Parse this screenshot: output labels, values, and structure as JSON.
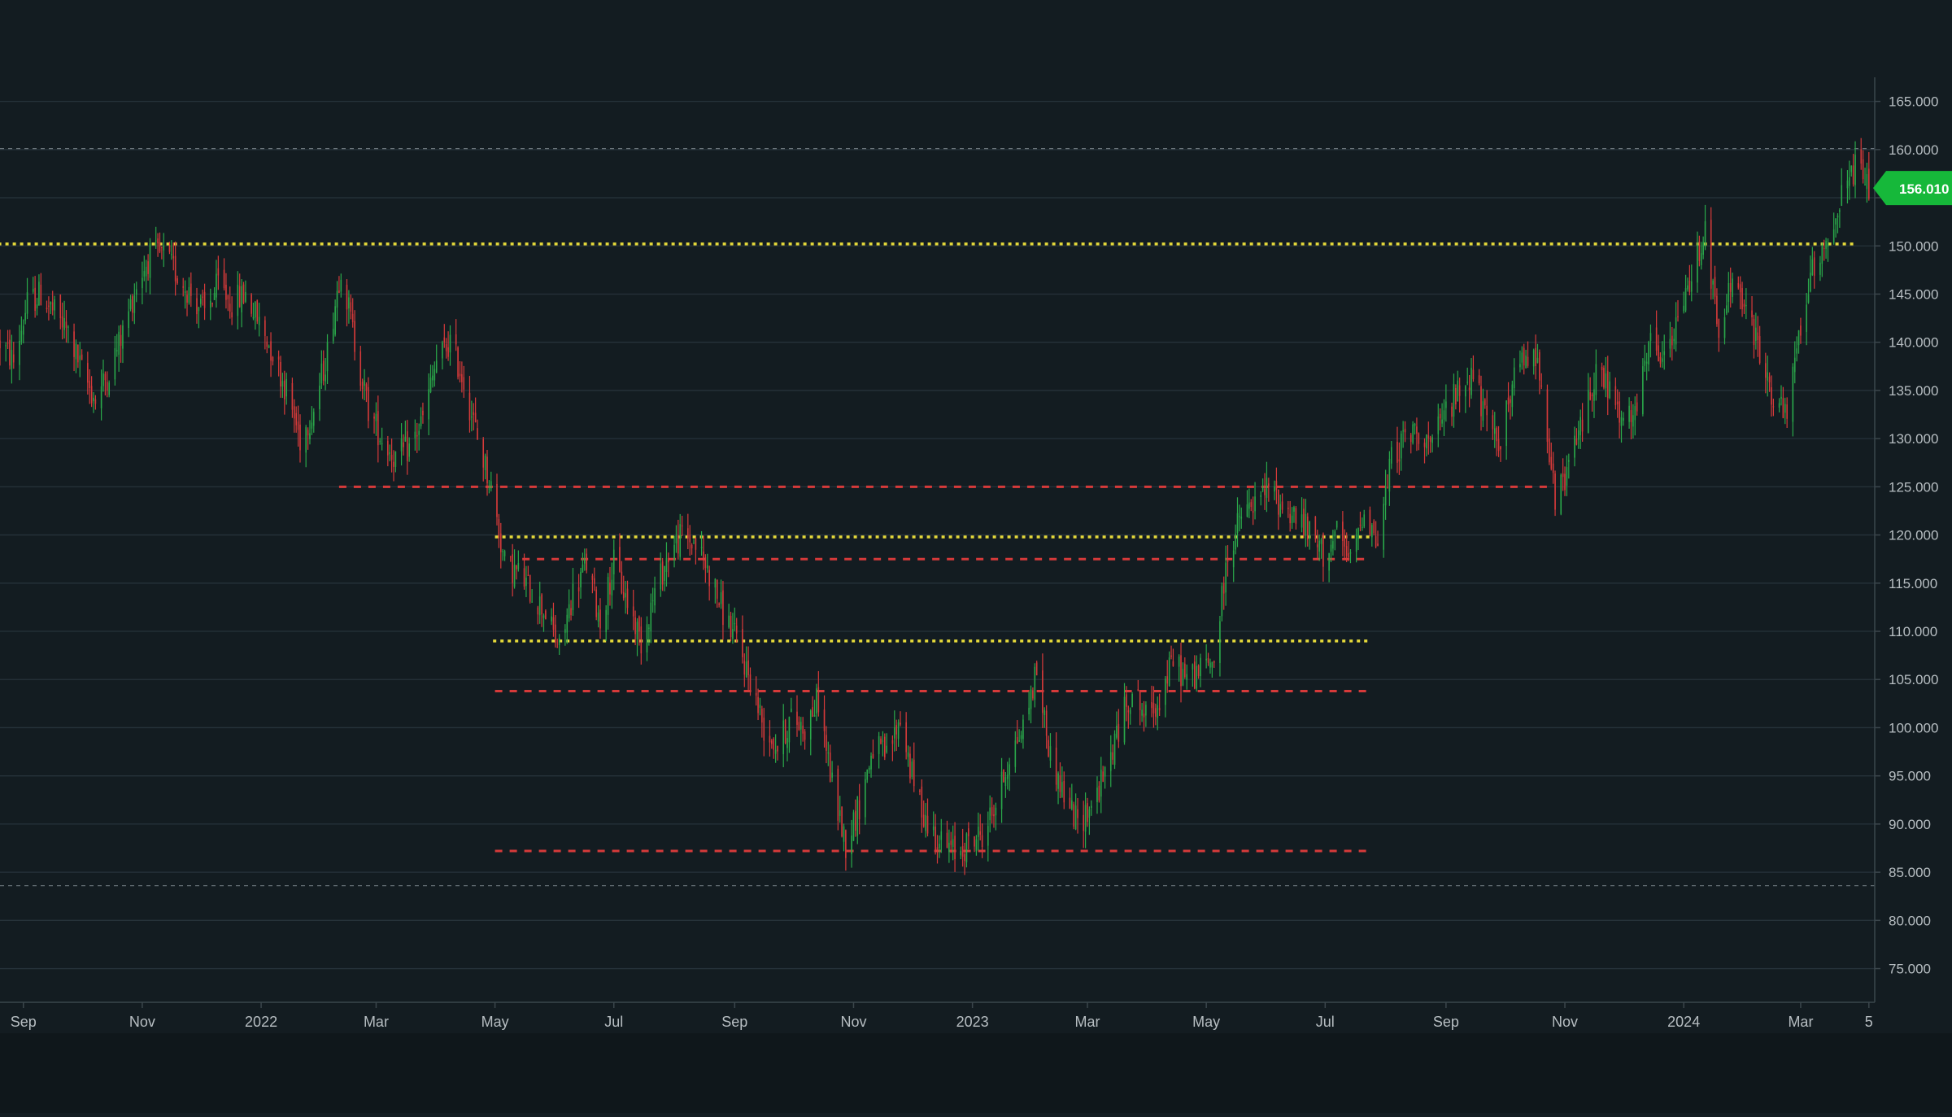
{
  "chart_data": {
    "type": "candlestick",
    "title": "",
    "xlabel": "",
    "ylabel": "",
    "ylim": [
      71.5,
      167.5
    ],
    "y_ticks": [
      75,
      80,
      85,
      90,
      95,
      100,
      105,
      110,
      115,
      120,
      125,
      130,
      135,
      140,
      145,
      150,
      155,
      160,
      165
    ],
    "y_tick_labels": [
      "75.000",
      "80.000",
      "85.000",
      "90.000",
      "95.000",
      "100.000",
      "105.000",
      "110.000",
      "115.000",
      "120.000",
      "125.000",
      "130.000",
      "135.000",
      "140.000",
      "145.000",
      "150.000",
      "155.000",
      "160.000",
      "165.000"
    ],
    "xlim": [
      "2021-08-20",
      "2024-04-08"
    ],
    "x_ticks": [
      {
        "date": "2021-09-01",
        "label": "Sep"
      },
      {
        "date": "2021-11-01",
        "label": "Nov"
      },
      {
        "date": "2022-01-01",
        "label": "2022"
      },
      {
        "date": "2022-03-01",
        "label": "Mar"
      },
      {
        "date": "2022-05-01",
        "label": "May"
      },
      {
        "date": "2022-07-01",
        "label": "Jul"
      },
      {
        "date": "2022-09-01",
        "label": "Sep"
      },
      {
        "date": "2022-11-01",
        "label": "Nov"
      },
      {
        "date": "2023-01-01",
        "label": "2023"
      },
      {
        "date": "2023-03-01",
        "label": "Mar"
      },
      {
        "date": "2023-05-01",
        "label": "May"
      },
      {
        "date": "2023-07-01",
        "label": "Jul"
      },
      {
        "date": "2023-09-01",
        "label": "Sep"
      },
      {
        "date": "2023-11-01",
        "label": "Nov"
      },
      {
        "date": "2024-01-01",
        "label": "2024"
      },
      {
        "date": "2024-03-01",
        "label": "Mar"
      },
      {
        "date": "2024-04-05",
        "label": "5"
      }
    ],
    "grid": true,
    "price_path": [
      [
        "2021-08-20",
        140
      ],
      [
        "2021-08-27",
        138
      ],
      [
        "2021-09-03",
        144
      ],
      [
        "2021-09-10",
        145
      ],
      [
        "2021-09-17",
        143
      ],
      [
        "2021-09-24",
        141
      ],
      [
        "2021-10-01",
        137
      ],
      [
        "2021-10-08",
        134
      ],
      [
        "2021-10-15",
        137
      ],
      [
        "2021-10-22",
        141
      ],
      [
        "2021-10-29",
        146
      ],
      [
        "2021-11-05",
        149
      ],
      [
        "2021-11-12",
        149
      ],
      [
        "2021-11-19",
        147
      ],
      [
        "2021-11-26",
        145
      ],
      [
        "2021-12-03",
        143
      ],
      [
        "2021-12-10",
        146
      ],
      [
        "2021-12-17",
        144
      ],
      [
        "2021-12-24",
        145
      ],
      [
        "2021-12-31",
        142
      ],
      [
        "2022-01-07",
        139
      ],
      [
        "2022-01-14",
        135
      ],
      [
        "2022-01-21",
        130
      ],
      [
        "2022-01-28",
        133
      ],
      [
        "2022-02-04",
        139
      ],
      [
        "2022-02-11",
        148
      ],
      [
        "2022-02-18",
        140
      ],
      [
        "2022-02-25",
        133
      ],
      [
        "2022-03-04",
        130
      ],
      [
        "2022-03-11",
        128
      ],
      [
        "2022-03-18",
        129
      ],
      [
        "2022-03-25",
        132
      ],
      [
        "2022-04-01",
        138
      ],
      [
        "2022-04-08",
        140
      ],
      [
        "2022-04-15",
        136
      ],
      [
        "2022-04-22",
        130
      ],
      [
        "2022-04-29",
        125
      ],
      [
        "2022-05-06",
        117
      ],
      [
        "2022-05-13",
        116
      ],
      [
        "2022-05-20",
        114
      ],
      [
        "2022-05-27",
        112
      ],
      [
        "2022-06-03",
        108
      ],
      [
        "2022-06-10",
        114
      ],
      [
        "2022-06-17",
        117
      ],
      [
        "2022-06-24",
        111
      ],
      [
        "2022-07-01",
        117
      ],
      [
        "2022-07-08",
        113
      ],
      [
        "2022-07-15",
        109
      ],
      [
        "2022-07-22",
        114
      ],
      [
        "2022-07-29",
        118
      ],
      [
        "2022-08-05",
        120
      ],
      [
        "2022-08-12",
        119
      ],
      [
        "2022-08-19",
        116
      ],
      [
        "2022-08-26",
        112
      ],
      [
        "2022-09-02",
        109
      ],
      [
        "2022-09-09",
        105
      ],
      [
        "2022-09-16",
        100
      ],
      [
        "2022-09-23",
        98
      ],
      [
        "2022-09-30",
        101
      ],
      [
        "2022-10-07",
        100
      ],
      [
        "2022-10-14",
        103
      ],
      [
        "2022-10-21",
        94
      ],
      [
        "2022-10-28",
        88
      ],
      [
        "2022-11-04",
        92
      ],
      [
        "2022-11-11",
        98
      ],
      [
        "2022-11-18",
        97
      ],
      [
        "2022-11-25",
        101
      ],
      [
        "2022-12-02",
        94
      ],
      [
        "2022-12-09",
        90
      ],
      [
        "2022-12-16",
        88
      ],
      [
        "2022-12-23",
        87
      ],
      [
        "2022-12-30",
        88
      ],
      [
        "2023-01-06",
        89
      ],
      [
        "2023-01-13",
        92
      ],
      [
        "2023-01-20",
        97
      ],
      [
        "2023-01-27",
        100
      ],
      [
        "2023-02-03",
        106
      ],
      [
        "2023-02-10",
        97
      ],
      [
        "2023-02-17",
        93
      ],
      [
        "2023-02-24",
        90
      ],
      [
        "2023-03-03",
        92
      ],
      [
        "2023-03-10",
        95
      ],
      [
        "2023-03-17",
        100
      ],
      [
        "2023-03-24",
        104
      ],
      [
        "2023-03-31",
        101
      ],
      [
        "2023-04-07",
        103
      ],
      [
        "2023-04-14",
        107
      ],
      [
        "2023-04-21",
        105
      ],
      [
        "2023-04-28",
        106
      ],
      [
        "2023-05-05",
        107
      ],
      [
        "2023-05-12",
        118
      ],
      [
        "2023-05-19",
        122
      ],
      [
        "2023-05-26",
        123
      ],
      [
        "2023-06-02",
        125
      ],
      [
        "2023-06-09",
        123
      ],
      [
        "2023-06-16",
        122
      ],
      [
        "2023-06-23",
        120
      ],
      [
        "2023-06-30",
        118
      ],
      [
        "2023-07-07",
        120
      ],
      [
        "2023-07-14",
        117
      ],
      [
        "2023-07-21",
        123
      ],
      [
        "2023-07-28",
        119
      ],
      [
        "2023-08-04",
        128
      ],
      [
        "2023-08-11",
        130
      ],
      [
        "2023-08-18",
        131
      ],
      [
        "2023-08-25",
        129
      ],
      [
        "2023-09-01",
        133
      ],
      [
        "2023-09-08",
        135
      ],
      [
        "2023-09-15",
        137
      ],
      [
        "2023-09-22",
        131
      ],
      [
        "2023-09-29",
        130
      ],
      [
        "2023-10-06",
        136
      ],
      [
        "2023-10-13",
        139
      ],
      [
        "2023-10-20",
        137
      ],
      [
        "2023-10-27",
        123
      ],
      [
        "2023-11-03",
        127
      ],
      [
        "2023-11-10",
        132
      ],
      [
        "2023-11-17",
        137
      ],
      [
        "2023-11-24",
        135
      ],
      [
        "2023-12-01",
        131
      ],
      [
        "2023-12-08",
        133
      ],
      [
        "2023-12-15",
        140
      ],
      [
        "2023-12-22",
        138
      ],
      [
        "2023-12-29",
        142
      ],
      [
        "2024-01-05",
        147
      ],
      [
        "2024-01-12",
        152
      ],
      [
        "2024-01-19",
        140
      ],
      [
        "2024-01-26",
        147
      ],
      [
        "2024-02-02",
        143
      ],
      [
        "2024-02-09",
        139
      ],
      [
        "2024-02-16",
        134
      ],
      [
        "2024-02-23",
        132
      ],
      [
        "2024-03-01",
        142
      ],
      [
        "2024-03-08",
        148
      ],
      [
        "2024-03-15",
        151
      ],
      [
        "2024-03-22",
        155
      ],
      [
        "2024-03-29",
        158
      ],
      [
        "2024-04-05",
        156
      ]
    ],
    "levels": [
      {
        "price": 150.2,
        "style": "dotted",
        "color": "#e5d93a",
        "from": "2021-08-19",
        "to": "2024-03-28"
      },
      {
        "price": 125.0,
        "style": "dashed",
        "color": "#d63a3a",
        "from": "2022-02-10",
        "to": "2023-10-25"
      },
      {
        "price": 119.8,
        "style": "dotted",
        "color": "#e5d93a",
        "from": "2022-05-01",
        "to": "2023-07-24"
      },
      {
        "price": 117.5,
        "style": "dashed",
        "color": "#d63a3a",
        "from": "2022-05-15",
        "to": "2023-07-24"
      },
      {
        "price": 109.0,
        "style": "dotted",
        "color": "#e5d93a",
        "from": "2022-04-30",
        "to": "2023-07-24"
      },
      {
        "price": 103.8,
        "style": "dashed",
        "color": "#d63a3a",
        "from": "2022-05-01",
        "to": "2023-07-24"
      },
      {
        "price": 87.2,
        "style": "dashed",
        "color": "#d63a3a",
        "from": "2022-05-01",
        "to": "2023-07-24"
      },
      {
        "price": 160.1,
        "style": "ref",
        "color": "#6b757b",
        "from": "2021-08-20",
        "to": "2024-04-08"
      },
      {
        "price": 83.6,
        "style": "ref",
        "color": "#6b757b",
        "from": "2021-08-20",
        "to": "2024-04-08"
      }
    ],
    "current_price": {
      "value": 156.01,
      "label": "156.010",
      "color": "#16b83a"
    },
    "up_color": "#2aa84a",
    "down_color": "#d63a3a"
  }
}
